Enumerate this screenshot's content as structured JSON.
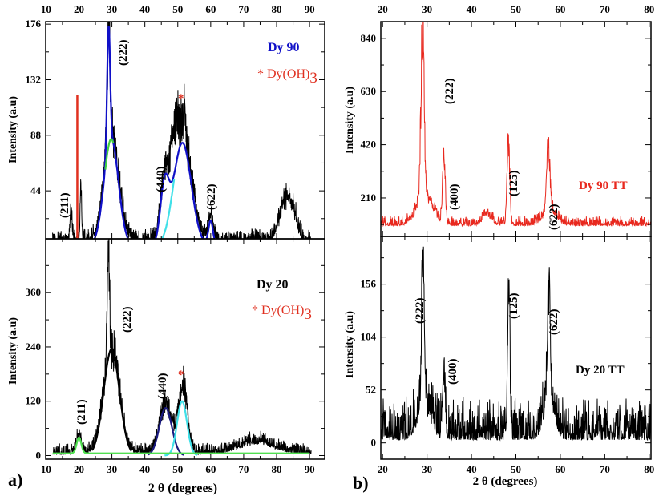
{
  "chart_data": [
    {
      "id": "a-top",
      "type": "line",
      "title": "Dy 90",
      "legend": [
        "Dy 90",
        "* Dy(OH)",
        "3"
      ],
      "xlabel": "",
      "ylabel": "Intensity (a.u)",
      "xlim": [
        9.9,
        94.6
      ],
      "ylim": [
        6,
        178
      ],
      "xticks": [
        10,
        20,
        30,
        40,
        50,
        60,
        70,
        80,
        90
      ],
      "yticks": [
        44,
        88,
        132,
        176
      ],
      "annotations": [
        "(211)",
        "(222)",
        "(440)",
        "(622)",
        "*"
      ],
      "series": [
        {
          "name": "measured",
          "color": "#000000",
          "noise": 9,
          "baseline": 2,
          "peaks": [
            [
              17.6,
              28,
              0.3
            ],
            [
              20.6,
              38,
              0.25
            ],
            [
              29,
              95,
              0.45
            ],
            [
              29.8,
              85,
              2.2
            ],
            [
              46,
              48,
              1.3
            ],
            [
              49,
              38,
              1.2
            ],
            [
              51.6,
              82,
              2.6
            ],
            [
              52,
              22,
              0.4
            ],
            [
              60,
              20,
              0.8
            ],
            [
              82.5,
              28,
              1.8
            ],
            [
              85,
              15,
              1.5
            ]
          ]
        },
        {
          "name": "fit-total",
          "color": "#1010c8",
          "peaks": [
            [
              29,
              95,
              0.45
            ],
            [
              29.8,
              85,
              2.2
            ],
            [
              46,
              45,
              1.3
            ],
            [
              51.4,
              82,
              2.7
            ],
            [
              60,
              20,
              0.7
            ]
          ]
        },
        {
          "name": "fit-cyan",
          "color": "#40e0e8",
          "peaks": [
            [
              51.4,
              82,
              2.7
            ]
          ],
          "range": [
            45,
            49
          ]
        },
        {
          "name": "fit-green",
          "color": "#40d040",
          "peaks": [
            [
              29.8,
              85,
              2.2
            ]
          ],
          "range": [
            28,
            30.5
          ]
        },
        {
          "name": "Dy(OH)3 marker",
          "color": "#e03020",
          "stick": [
            19.5,
            120
          ]
        }
      ]
    },
    {
      "id": "a-bottom",
      "type": "line",
      "title": "Dy 20",
      "legend": [
        "Dy 20",
        "* Dy(OH)",
        "3"
      ],
      "xlabel": "2 θ (degrees)",
      "ylabel": "Intensity (a.u)",
      "xlim": [
        9.9,
        94.6
      ],
      "ylim": [
        -8,
        479
      ],
      "xticks": [
        10,
        20,
        30,
        40,
        50,
        60,
        70,
        80,
        90
      ],
      "yticks": [
        0,
        120,
        240,
        360
      ],
      "annotations": [
        "(211)",
        "(222)",
        "(440)",
        "*"
      ],
      "panel_label": "a)",
      "series": [
        {
          "name": "measured",
          "color": "#000000",
          "noise": 18,
          "baseline": 3,
          "peaks": [
            [
              20,
              38,
              0.7
            ],
            [
              28.9,
              240,
              0.35
            ],
            [
              29.9,
              230,
              2.4
            ],
            [
              46.4,
              105,
              1.9
            ],
            [
              51.6,
              150,
              1.3
            ],
            [
              74,
              25,
              5
            ]
          ]
        },
        {
          "name": "fit-222",
          "color": "#000000",
          "peaks": [
            [
              29.9,
              235,
              2.4
            ]
          ],
          "range": [
            24,
            36
          ]
        },
        {
          "name": "fit-440",
          "color": "#1a1a80",
          "peaks": [
            [
              46.3,
              105,
              1.9
            ]
          ],
          "range": [
            41,
            52
          ]
        },
        {
          "name": "fit-cyan",
          "color": "#40e0e8",
          "peaks": [
            [
              51.3,
              120,
              1.5
            ]
          ],
          "range": [
            46,
            56
          ]
        },
        {
          "name": "baseline-green",
          "color": "#50e050",
          "offset": 5,
          "peaks": [
            [
              20,
              35,
              0.7
            ]
          ],
          "range": [
            12,
            90
          ]
        }
      ]
    },
    {
      "id": "b-top",
      "type": "line",
      "title": "Dy 90 TT",
      "xlabel": "",
      "ylabel": "Intensity (a.u)",
      "xlim": [
        19.6,
        80.4
      ],
      "ylim": [
        58,
        906
      ],
      "xticks": [
        20,
        30,
        40,
        50,
        60,
        70,
        80
      ],
      "yticks": [
        210,
        420,
        630,
        840
      ],
      "annotations": [
        "(222)",
        "(400)",
        "(125)",
        "(622)"
      ],
      "series": [
        {
          "name": "Dy 90 TT",
          "color": "#e8281e",
          "noise": 28,
          "baseline": 100,
          "peaks": [
            [
              29,
              690,
              0.35
            ],
            [
              29.5,
              120,
              1.8
            ],
            [
              33.8,
              260,
              0.3
            ],
            [
              43.5,
              40,
              1
            ],
            [
              48.3,
              310,
              0.3
            ],
            [
              57.3,
              270,
              0.35
            ],
            [
              57.6,
              60,
              1.5
            ]
          ]
        }
      ]
    },
    {
      "id": "b-bottom",
      "type": "line",
      "title": "Dy 20 TT",
      "xlabel": "2 θ (degrees)",
      "ylabel": "Intensity (a.u)",
      "xlim": [
        19.6,
        80.4
      ],
      "ylim": [
        -16,
        203
      ],
      "xticks": [
        20,
        30,
        40,
        50,
        60,
        70,
        80
      ],
      "yticks": [
        0,
        52,
        104,
        156
      ],
      "annotations": [
        "(222)",
        "(400)",
        "(125)",
        "(622)"
      ],
      "panel_label": "b)",
      "series": [
        {
          "name": "Dy 20 TT",
          "color": "#000000",
          "noise": 30,
          "baseline": 3,
          "peaks": [
            [
              29.1,
              130,
              0.3
            ],
            [
              29.3,
              30,
              1.5
            ],
            [
              33.8,
              55,
              0.3
            ],
            [
              48.4,
              145,
              0.25
            ],
            [
              57.4,
              110,
              0.3
            ],
            [
              57.5,
              35,
              1.2
            ]
          ]
        }
      ]
    }
  ]
}
